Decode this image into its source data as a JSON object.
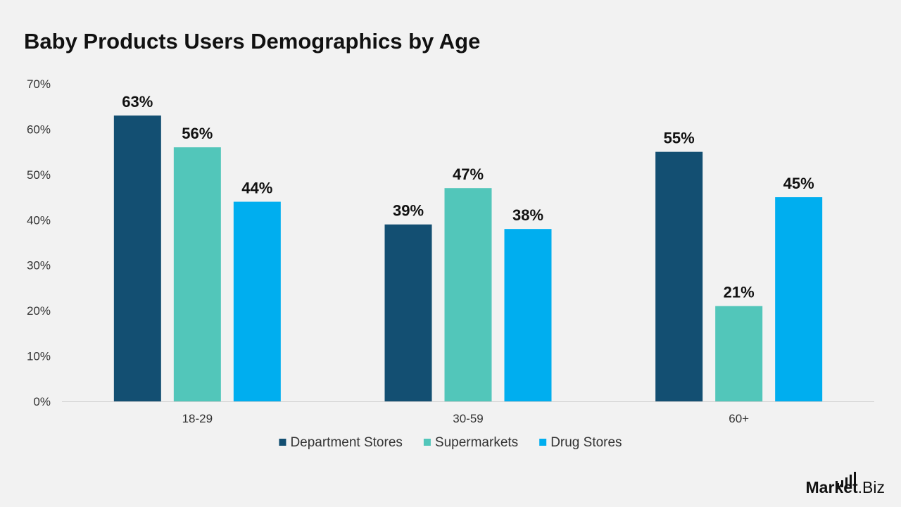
{
  "chart_data": {
    "type": "bar",
    "title": "Baby Products Users Demographics by Age",
    "categories": [
      "18-29",
      "30-59",
      "60+"
    ],
    "series": [
      {
        "name": "Department Stores",
        "values": [
          63,
          39,
          55
        ],
        "color": "#134f72"
      },
      {
        "name": "Supermarkets",
        "values": [
          56,
          47,
          21
        ],
        "color": "#52c6ba"
      },
      {
        "name": "Drug Stores",
        "values": [
          44,
          38,
          45
        ],
        "color": "#00aeef"
      }
    ],
    "ylim": [
      0,
      70
    ],
    "yticks": [
      "0%",
      "10%",
      "20%",
      "30%",
      "40%",
      "50%",
      "60%",
      "70%"
    ],
    "value_suffix": "%",
    "grid": false,
    "legend_position": "bottom-center"
  },
  "brand": {
    "name_bold": "Market",
    "name_regular": ".Biz",
    "icon": "bar-chart-icon"
  }
}
